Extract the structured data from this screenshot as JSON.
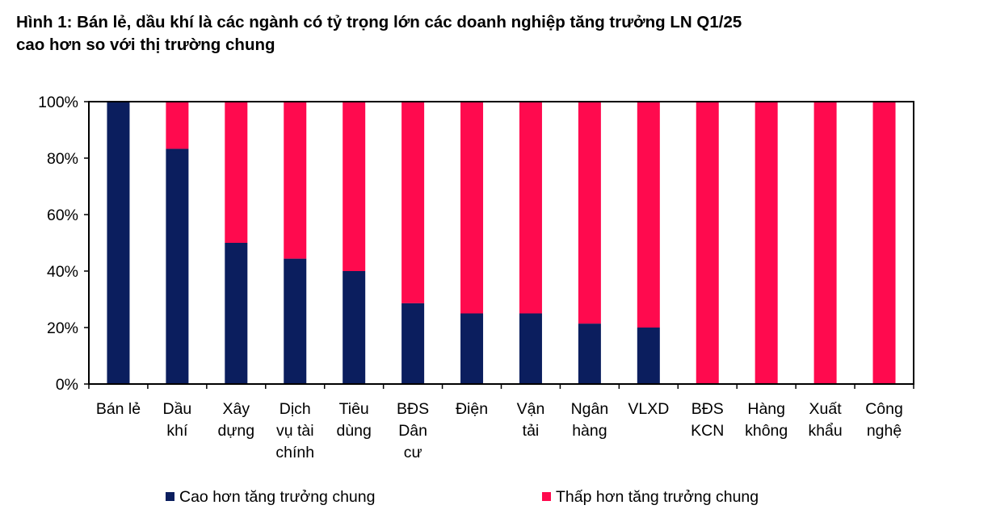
{
  "title_line1": "Hình 1: Bán lẻ, dầu khí là các ngành có tỷ trọng lớn các doanh nghiệp tăng trưởng LN Q1/25",
  "title_line2": "cao hơn so với thị trường chung",
  "colors": {
    "higher": "#0b1e5e",
    "lower": "#ff0a4e",
    "axis": "#000000"
  },
  "chart_data": {
    "type": "bar",
    "stacked": true,
    "percent": true,
    "title": "Hình 1: Bán lẻ, dầu khí là các ngành có tỷ trọng lớn các doanh nghiệp tăng trưởng LN Q1/25 cao hơn so với thị trường chung",
    "xlabel": "",
    "ylabel": "",
    "ylim": [
      0,
      100
    ],
    "yticks": [
      "0%",
      "20%",
      "40%",
      "60%",
      "80%",
      "100%"
    ],
    "categories": [
      [
        "Bán lẻ"
      ],
      [
        "Dầu",
        "khí"
      ],
      [
        "Xây",
        "dựng"
      ],
      [
        "Dịch",
        "vụ tài",
        "chính"
      ],
      [
        "Tiêu",
        "dùng"
      ],
      [
        "BĐS",
        "Dân",
        "cư"
      ],
      [
        "Điện"
      ],
      [
        "Vận",
        "tải"
      ],
      [
        "Ngân",
        "hàng"
      ],
      [
        "VLXD"
      ],
      [
        "BĐS",
        "KCN"
      ],
      [
        "Hàng",
        "không"
      ],
      [
        "Xuất",
        "khẩu"
      ],
      [
        "Công",
        "nghệ"
      ]
    ],
    "series": [
      {
        "name": "Cao hơn tăng trưởng chung",
        "values": [
          100,
          83.3,
          50,
          44.4,
          40,
          28.6,
          25,
          25,
          21.4,
          20,
          0,
          0,
          0,
          0
        ]
      },
      {
        "name": "Thấp hơn tăng trưởng chung",
        "values": [
          0,
          16.7,
          50,
          55.6,
          60,
          71.4,
          75,
          75,
          78.6,
          80,
          100,
          100,
          100,
          100
        ]
      }
    ],
    "legend_position": "bottom",
    "grid": false
  }
}
